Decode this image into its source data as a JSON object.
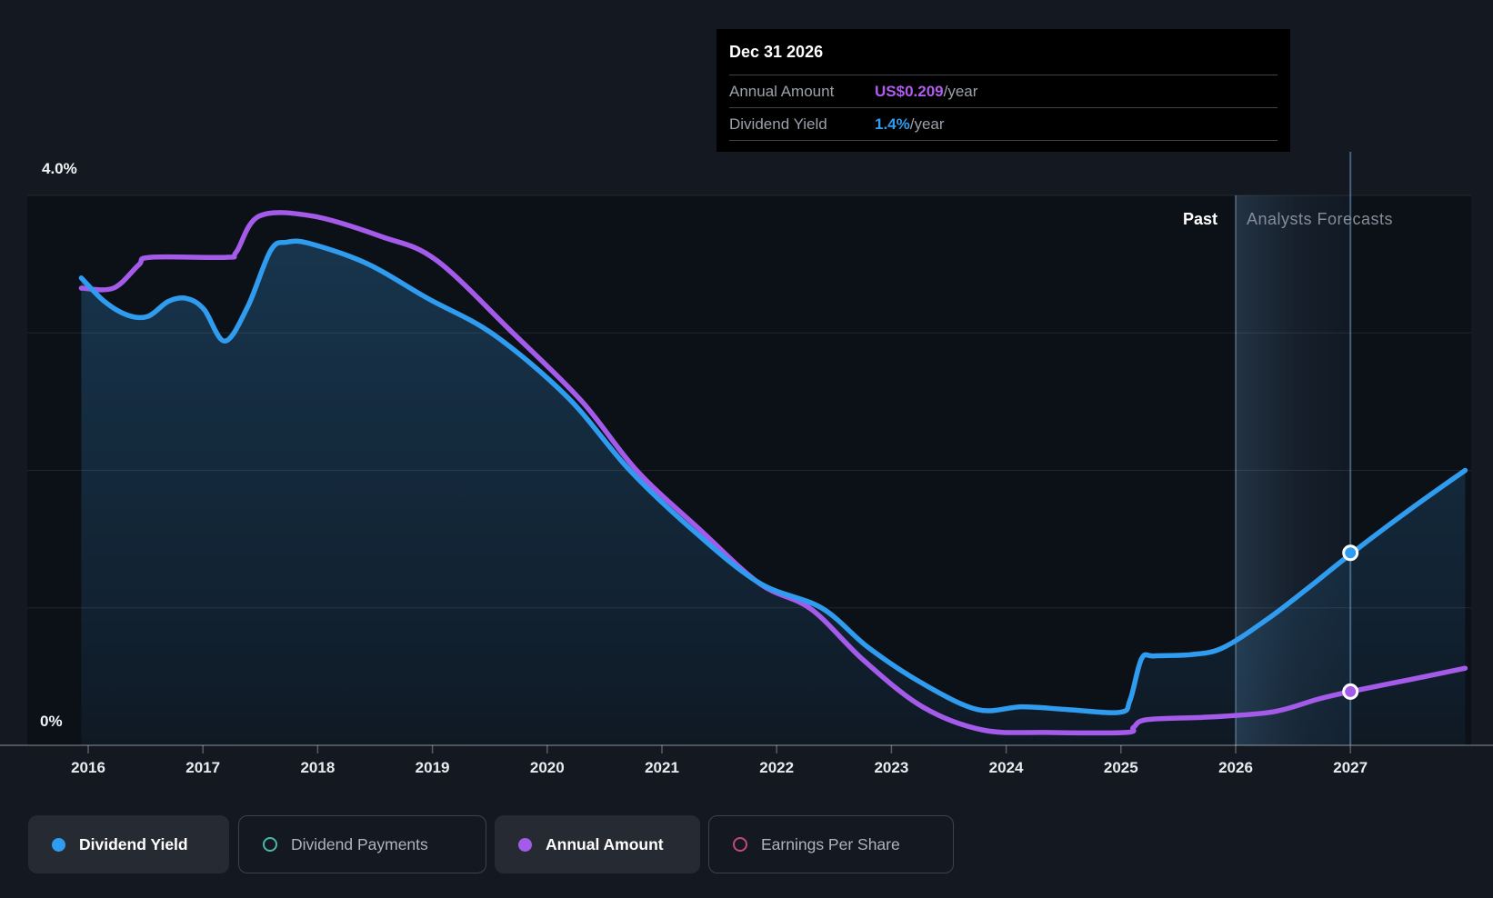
{
  "page": {
    "background": "#141821",
    "plot_background": "#0C1017"
  },
  "tooltip": {
    "date": "Dec 31 2026",
    "rows": [
      {
        "label": "Annual Amount",
        "value": "US$0.209",
        "suffix": "/year",
        "color": "#B05CF0"
      },
      {
        "label": "Dividend Yield",
        "value": "1.4%",
        "suffix": "/year",
        "color": "#2F9CEF"
      }
    ]
  },
  "axis": {
    "y_top_label": "4.0%",
    "y_bottom_label": "0%",
    "years": [
      "2016",
      "2017",
      "2018",
      "2019",
      "2020",
      "2021",
      "2022",
      "2023",
      "2024",
      "2025",
      "2026",
      "2027"
    ]
  },
  "annotations": {
    "past": "Past",
    "forecast": "Analysts Forecasts"
  },
  "legend": {
    "items": [
      {
        "label": "Dividend Yield",
        "marker": "filled",
        "color": "#2F9CEF",
        "active": true
      },
      {
        "label": "Dividend Payments",
        "marker": "ring",
        "color": "#49B8A8",
        "active": false
      },
      {
        "label": "Annual Amount",
        "marker": "filled",
        "color": "#A55BE9",
        "active": true
      },
      {
        "label": "Earnings Per Share",
        "marker": "ring",
        "color": "#C2497B",
        "active": false
      }
    ]
  },
  "chart_data": {
    "type": "area",
    "title": "Dividend history and forecast",
    "x_axis": {
      "tick_years": [
        2016,
        2017,
        2018,
        2019,
        2020,
        2021,
        2022,
        2023,
        2024,
        2025,
        2026,
        2027
      ],
      "domain": [
        2015.94,
        2028.0
      ]
    },
    "y_axis": {
      "unit": "%",
      "domain": [
        0,
        4.0
      ],
      "gridlines_pct": [
        1,
        2,
        3,
        4
      ],
      "top_label": "4.0%",
      "bottom_label": "0%",
      "grid": true
    },
    "secondary_y_axis": {
      "unit": "US$/year",
      "domain": [
        0,
        2.14
      ],
      "visible": false,
      "note": "Annual Amount series plotted against this hidden axis"
    },
    "forecast": {
      "boundary_year": 2026,
      "past_label": "Past",
      "forecast_label": "Analysts Forecasts"
    },
    "hover": {
      "year": 2027,
      "date_label": "Dec 31 2026",
      "dividend_yield_pct": 1.4,
      "annual_amount_usd": 0.209
    },
    "legend_position": "bottom-left",
    "series": [
      {
        "name": "Dividend Yield",
        "unit": "%",
        "color": "#2F9CEF",
        "style": "area",
        "points": [
          [
            2015.94,
            3.4
          ],
          [
            2016.14,
            3.23
          ],
          [
            2016.34,
            3.13
          ],
          [
            2016.52,
            3.12
          ],
          [
            2016.7,
            3.23
          ],
          [
            2016.86,
            3.25
          ],
          [
            2017.01,
            3.17
          ],
          [
            2017.19,
            2.94
          ],
          [
            2017.39,
            3.19
          ],
          [
            2017.59,
            3.6
          ],
          [
            2017.73,
            3.66
          ],
          [
            2017.93,
            3.65
          ],
          [
            2018.44,
            3.5
          ],
          [
            2018.96,
            3.25
          ],
          [
            2019.53,
            2.99
          ],
          [
            2020.18,
            2.53
          ],
          [
            2020.72,
            2.0
          ],
          [
            2021.29,
            1.55
          ],
          [
            2021.85,
            1.18
          ],
          [
            2022.39,
            1.0
          ],
          [
            2022.8,
            0.71
          ],
          [
            2023.27,
            0.45
          ],
          [
            2023.75,
            0.26
          ],
          [
            2024.14,
            0.28
          ],
          [
            2024.54,
            0.26
          ],
          [
            2024.99,
            0.24
          ],
          [
            2025.08,
            0.33
          ],
          [
            2025.18,
            0.63
          ],
          [
            2025.29,
            0.65
          ],
          [
            2025.61,
            0.66
          ],
          [
            2025.89,
            0.71
          ],
          [
            2026.28,
            0.92
          ],
          [
            2026.64,
            1.15
          ],
          [
            2027.0,
            1.39
          ],
          [
            2027.51,
            1.71
          ],
          [
            2028.0,
            2.0
          ]
        ]
      },
      {
        "name": "Annual Amount",
        "unit": "US$/year",
        "color": "#A55BE9",
        "style": "line",
        "points": [
          [
            2015.94,
            1.78
          ],
          [
            2016.22,
            1.78
          ],
          [
            2016.44,
            1.87
          ],
          [
            2016.54,
            1.9
          ],
          [
            2017.2,
            1.9
          ],
          [
            2017.29,
            1.92
          ],
          [
            2017.49,
            2.06
          ],
          [
            2017.96,
            2.06
          ],
          [
            2018.56,
            1.98
          ],
          [
            2019.03,
            1.89
          ],
          [
            2019.69,
            1.61
          ],
          [
            2020.3,
            1.34
          ],
          [
            2020.78,
            1.07
          ],
          [
            2021.33,
            0.84
          ],
          [
            2021.85,
            0.63
          ],
          [
            2022.3,
            0.53
          ],
          [
            2022.76,
            0.33
          ],
          [
            2023.27,
            0.15
          ],
          [
            2023.79,
            0.06
          ],
          [
            2024.34,
            0.05
          ],
          [
            2025.04,
            0.05
          ],
          [
            2025.11,
            0.07
          ],
          [
            2025.23,
            0.1
          ],
          [
            2025.77,
            0.11
          ],
          [
            2026.32,
            0.13
          ],
          [
            2026.72,
            0.18
          ],
          [
            2027.0,
            0.209
          ],
          [
            2027.51,
            0.255
          ],
          [
            2028.0,
            0.3
          ]
        ]
      }
    ],
    "markers": [
      {
        "series": "Dividend Yield",
        "year": 2027,
        "value": 1.4,
        "unit": "%"
      },
      {
        "series": "Annual Amount",
        "year": 2027,
        "value": 0.209,
        "unit": "US$/year"
      }
    ]
  }
}
